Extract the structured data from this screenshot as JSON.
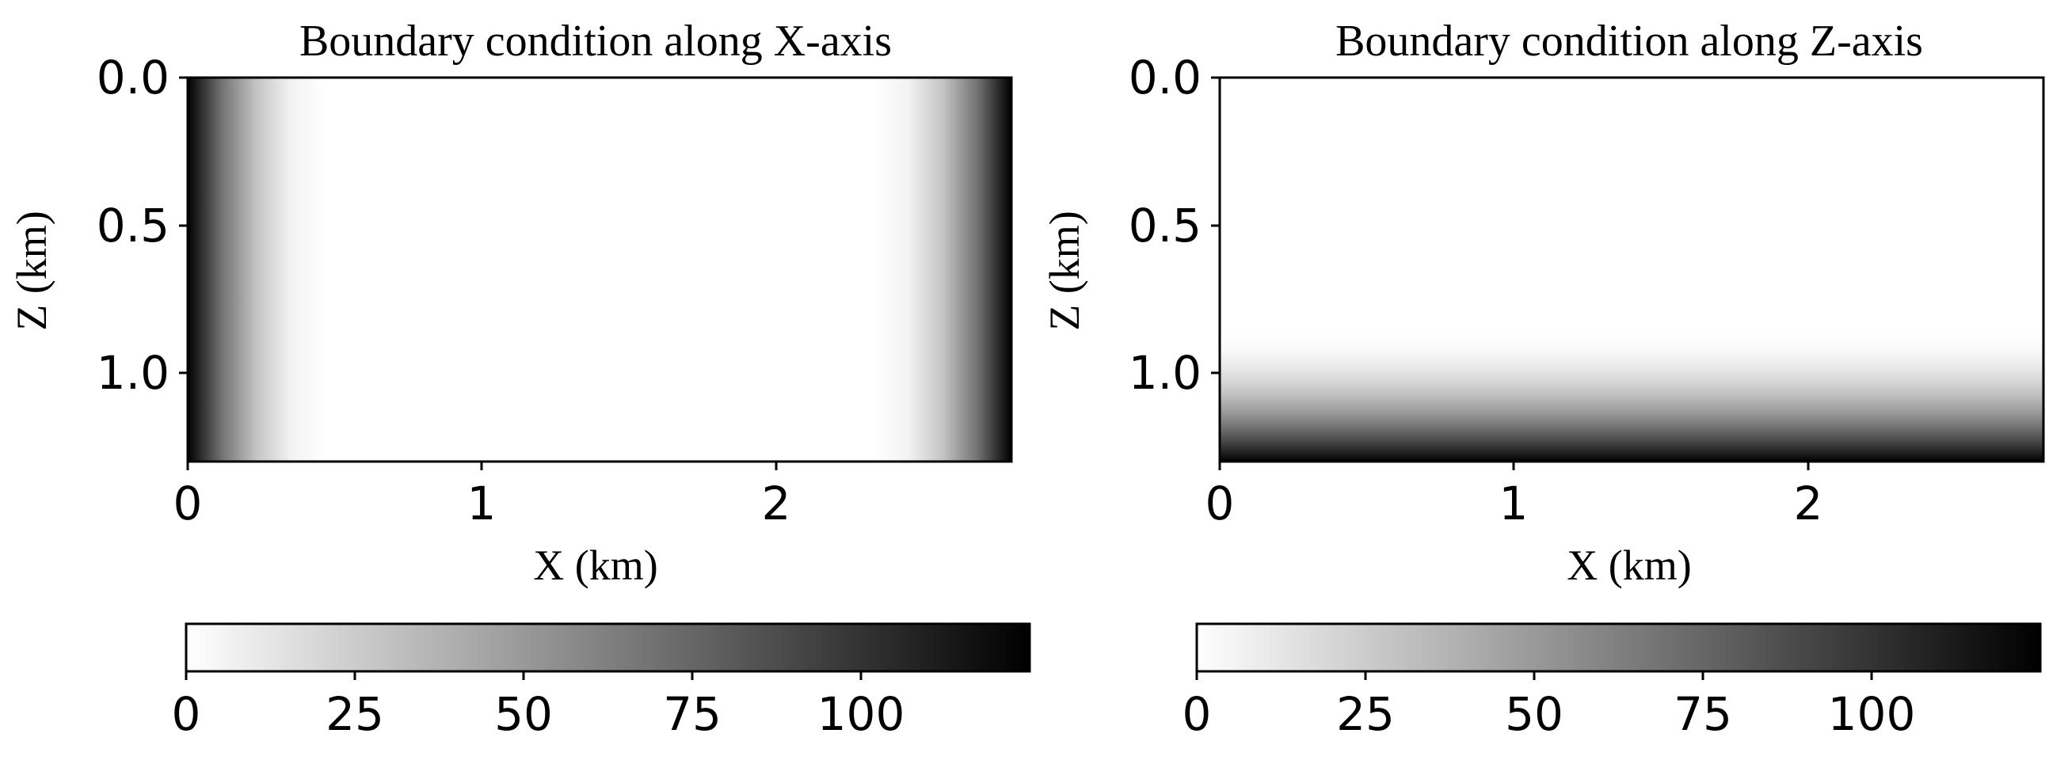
{
  "chart_data": [
    {
      "type": "heatmap",
      "title": "Boundary condition along X-axis",
      "xlabel": "X (km)",
      "ylabel": "Z (km)",
      "xlim": [
        0,
        2.8
      ],
      "ylim": [
        1.3,
        0.0
      ],
      "xticks": [
        0,
        1,
        2
      ],
      "xtick_labels": [
        "0",
        "1",
        "2"
      ],
      "yticks": [
        0.0,
        0.5,
        1.0
      ],
      "ytick_labels": [
        "0.0",
        "0.5",
        "1.0"
      ],
      "colormap": "gray_r",
      "boundary_axis": "x",
      "boundary_width_km": 0.45,
      "max_value": 125,
      "colorbar": {
        "orientation": "horizontal",
        "range": [
          0,
          125
        ],
        "ticks": [
          0,
          25,
          50,
          75,
          100
        ],
        "tick_labels": [
          "0",
          "25",
          "50",
          "75",
          "100"
        ]
      }
    },
    {
      "type": "heatmap",
      "title": "Boundary condition along Z-axis",
      "xlabel": "X (km)",
      "ylabel": "Z (km)",
      "xlim": [
        0,
        2.8
      ],
      "ylim": [
        1.3,
        0.0
      ],
      "xticks": [
        0,
        1,
        2
      ],
      "xtick_labels": [
        "0",
        "1",
        "2"
      ],
      "yticks": [
        0.0,
        0.5,
        1.0
      ],
      "ytick_labels": [
        "0.0",
        "0.5",
        "1.0"
      ],
      "colormap": "gray_r",
      "boundary_axis": "z",
      "boundary_width_km": 0.45,
      "max_value": 125,
      "colorbar": {
        "orientation": "horizontal",
        "range": [
          0,
          125
        ],
        "ticks": [
          0,
          25,
          50,
          75,
          100
        ],
        "tick_labels": [
          "0",
          "25",
          "50",
          "75",
          "100"
        ]
      }
    }
  ]
}
